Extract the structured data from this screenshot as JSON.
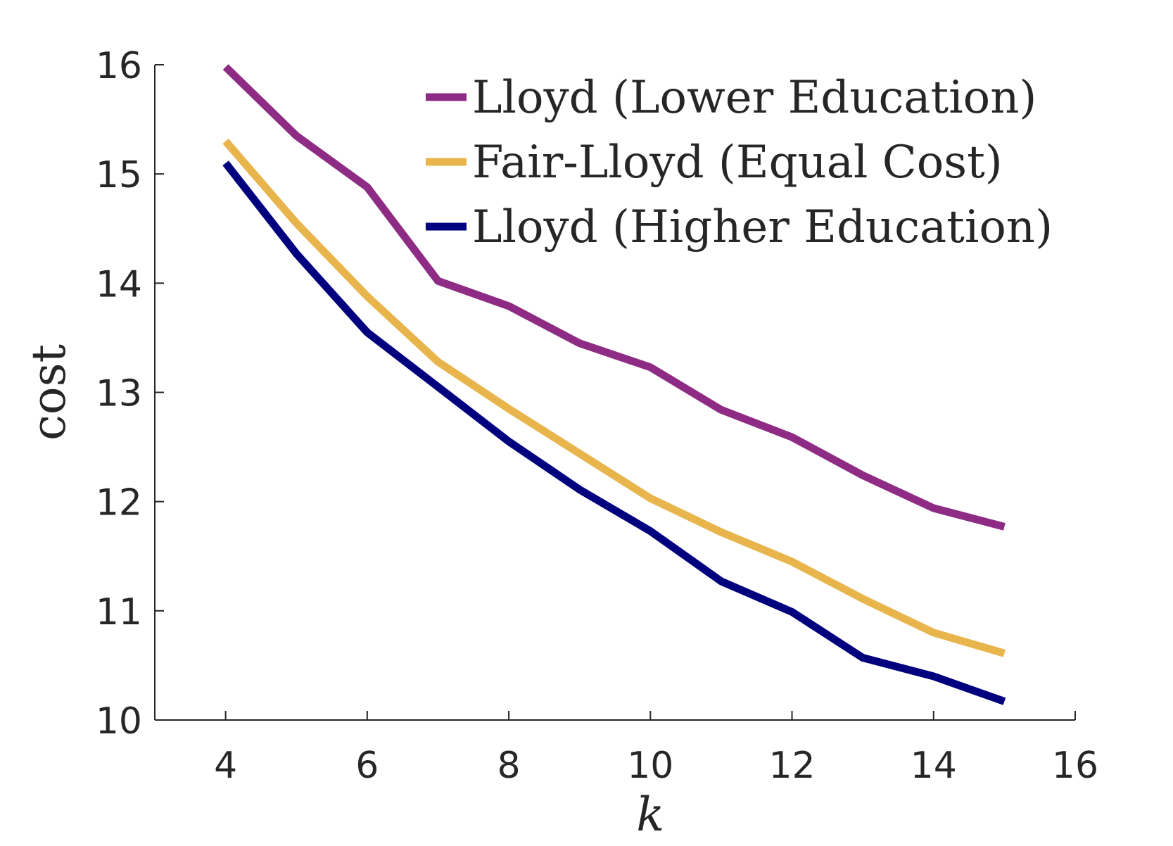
{
  "chart_data": {
    "type": "line",
    "xlabel": "k",
    "ylabel": "cost",
    "xlim": [
      3,
      16
    ],
    "ylim": [
      10,
      16
    ],
    "xticks": [
      4,
      6,
      8,
      10,
      12,
      14,
      16
    ],
    "yticks": [
      10,
      11,
      12,
      13,
      14,
      15,
      16
    ],
    "grid": false,
    "legend_position": "top-right",
    "x": [
      4,
      5,
      6,
      7,
      8,
      9,
      10,
      11,
      12,
      13,
      14,
      15
    ],
    "series": [
      {
        "name": "Lloyd (Lower Education)",
        "color": "#8e2c85",
        "values": [
          15.98,
          15.35,
          14.88,
          14.02,
          13.79,
          13.45,
          13.23,
          12.84,
          12.59,
          12.24,
          11.94,
          11.77
        ]
      },
      {
        "name": "Fair-Lloyd (Equal Cost)",
        "color": "#e8b54d",
        "values": [
          15.3,
          14.55,
          13.88,
          13.28,
          12.85,
          12.44,
          12.03,
          11.72,
          11.45,
          11.11,
          10.8,
          10.61
        ]
      },
      {
        "name": "Lloyd (Higher Education)",
        "color": "#00007f",
        "values": [
          15.1,
          14.27,
          13.55,
          13.05,
          12.55,
          12.11,
          11.73,
          11.27,
          10.99,
          10.57,
          10.4,
          10.17
        ]
      }
    ]
  }
}
